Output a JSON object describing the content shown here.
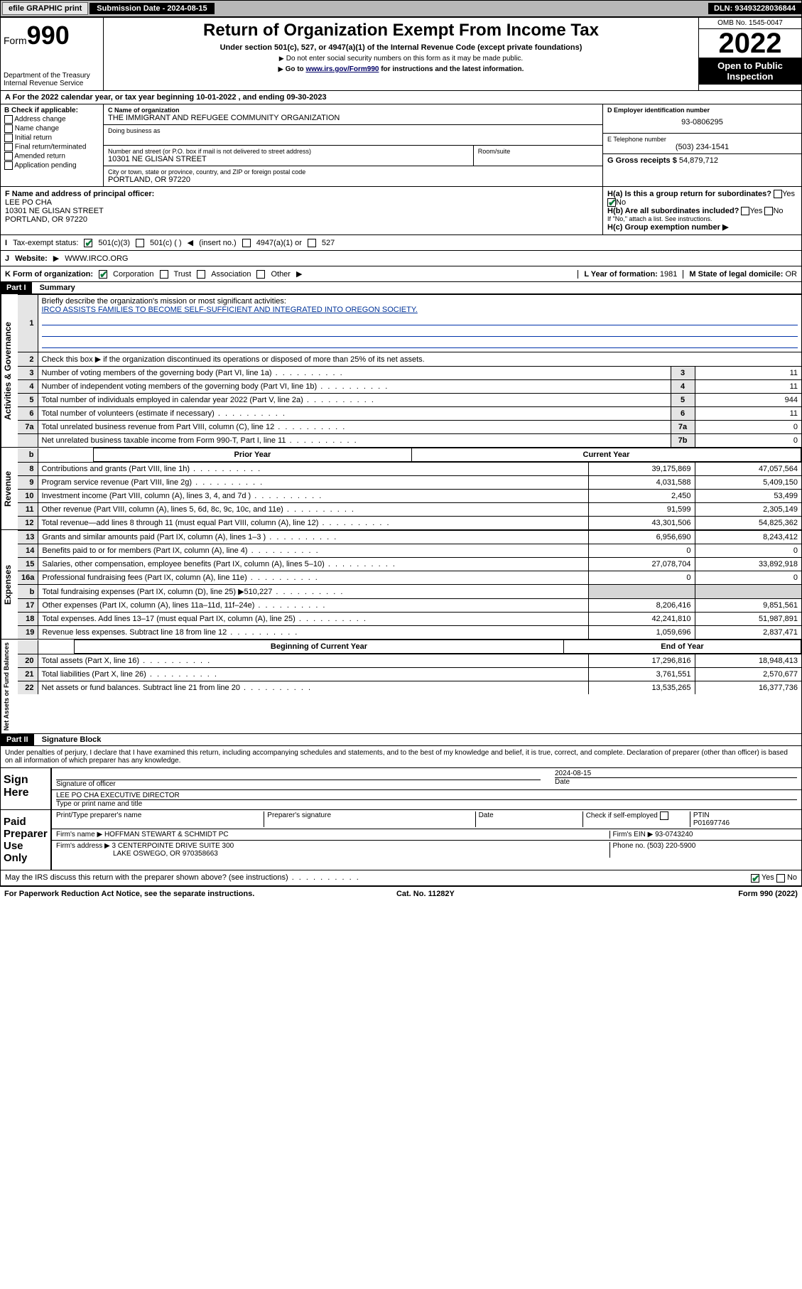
{
  "topbar": {
    "efile": "efile GRAPHIC print",
    "sub_label": "Submission Date - 2024-08-15",
    "dln": "DLN: 93493228036844"
  },
  "header": {
    "form_prefix": "Form",
    "form_num": "990",
    "dept": "Department of the Treasury",
    "irs": "Internal Revenue Service",
    "title": "Return of Organization Exempt From Income Tax",
    "sub": "Under section 501(c), 527, or 4947(a)(1) of the Internal Revenue Code (except private foundations)",
    "note1": "Do not enter social security numbers on this form as it may be made public.",
    "note2_pre": "Go to ",
    "note2_link": "www.irs.gov/Form990",
    "note2_post": " for instructions and the latest information.",
    "omb": "OMB No. 1545-0047",
    "year": "2022",
    "open": "Open to Public Inspection"
  },
  "period": "For the 2022 calendar year, or tax year beginning 10-01-2022  , and ending 09-30-2023",
  "sectionB": {
    "label": "B Check if applicable:",
    "items": [
      "Address change",
      "Name change",
      "Initial return",
      "Final return/terminated",
      "Amended return",
      "Application pending"
    ]
  },
  "sectionC": {
    "name_lbl": "C Name of organization",
    "name": "THE IMMIGRANT AND REFUGEE COMMUNITY ORGANIZATION",
    "dba_lbl": "Doing business as",
    "street_lbl": "Number and street (or P.O. box if mail is not delivered to street address)",
    "room_lbl": "Room/suite",
    "street": "10301 NE GLISAN STREET",
    "city_lbl": "City or town, state or province, country, and ZIP or foreign postal code",
    "city": "PORTLAND, OR  97220"
  },
  "sectionD": {
    "lbl": "D Employer identification number",
    "val": "93-0806295"
  },
  "sectionE": {
    "lbl": "E Telephone number",
    "val": "(503) 234-1541"
  },
  "sectionG": {
    "lbl": "G Gross receipts $",
    "val": "54,879,712"
  },
  "sectionF": {
    "lbl": "F Name and address of principal officer:",
    "name": "LEE PO CHA",
    "addr1": "10301 NE GLISAN STREET",
    "addr2": "PORTLAND, OR  97220"
  },
  "sectionH": {
    "ha": "H(a)  Is this a group return for subordinates?",
    "yes": "Yes",
    "no": "No",
    "hb": "H(b)  Are all subordinates included?",
    "hb_note": "If \"No,\" attach a list. See instructions.",
    "hc": "H(c)  Group exemption number"
  },
  "taxline": {
    "lbl": "Tax-exempt status:",
    "c3": "501(c)(3)",
    "c_blank": "501(c) (  )",
    "insert": "(insert no.)",
    "a1": "4947(a)(1) or",
    "s527": "527"
  },
  "website": {
    "lbl": "Website:",
    "val": "WWW.IRCO.ORG"
  },
  "kline": {
    "lbl": "K Form of organization:",
    "opts": [
      "Corporation",
      "Trust",
      "Association",
      "Other"
    ],
    "l_lbl": "L Year of formation:",
    "l_val": "1981",
    "m_lbl": "M State of legal domicile:",
    "m_val": "OR"
  },
  "part1": {
    "hdr": "Part I",
    "title": "Summary",
    "q1_lbl": "Briefly describe the organization's mission or most significant activities:",
    "q1_val": "IRCO ASSISTS FAMILIES TO BECOME SELF-SUFFICIENT AND INTEGRATED INTO OREGON SOCIETY.",
    "q2": "Check this box ▶     if the organization discontinued its operations or disposed of more than 25% of its net assets.",
    "sideA": "Activities & Governance",
    "sideR": "Revenue",
    "sideE": "Expenses",
    "sideN": "Net Assets or Fund Balances",
    "rows_gov": [
      {
        "n": "3",
        "t": "Number of voting members of the governing body (Part VI, line 1a)",
        "c": "3",
        "v": "11"
      },
      {
        "n": "4",
        "t": "Number of independent voting members of the governing body (Part VI, line 1b)",
        "c": "4",
        "v": "11"
      },
      {
        "n": "5",
        "t": "Total number of individuals employed in calendar year 2022 (Part V, line 2a)",
        "c": "5",
        "v": "944"
      },
      {
        "n": "6",
        "t": "Total number of volunteers (estimate if necessary)",
        "c": "6",
        "v": "11"
      },
      {
        "n": "7a",
        "t": "Total unrelated business revenue from Part VIII, column (C), line 12",
        "c": "7a",
        "v": "0"
      },
      {
        "n": "",
        "t": "Net unrelated business taxable income from Form 990-T, Part I, line 11",
        "c": "7b",
        "v": "0"
      }
    ],
    "hdr_prior": "Prior Year",
    "hdr_curr": "Current Year",
    "rows_rev": [
      {
        "n": "8",
        "t": "Contributions and grants (Part VIII, line 1h)",
        "p": "39,175,869",
        "c": "47,057,564"
      },
      {
        "n": "9",
        "t": "Program service revenue (Part VIII, line 2g)",
        "p": "4,031,588",
        "c": "5,409,150"
      },
      {
        "n": "10",
        "t": "Investment income (Part VIII, column (A), lines 3, 4, and 7d )",
        "p": "2,450",
        "c": "53,499"
      },
      {
        "n": "11",
        "t": "Other revenue (Part VIII, column (A), lines 5, 6d, 8c, 9c, 10c, and 11e)",
        "p": "91,599",
        "c": "2,305,149"
      },
      {
        "n": "12",
        "t": "Total revenue—add lines 8 through 11 (must equal Part VIII, column (A), line 12)",
        "p": "43,301,506",
        "c": "54,825,362"
      }
    ],
    "rows_exp": [
      {
        "n": "13",
        "t": "Grants and similar amounts paid (Part IX, column (A), lines 1–3 )",
        "p": "6,956,690",
        "c": "8,243,412"
      },
      {
        "n": "14",
        "t": "Benefits paid to or for members (Part IX, column (A), line 4)",
        "p": "0",
        "c": "0"
      },
      {
        "n": "15",
        "t": "Salaries, other compensation, employee benefits (Part IX, column (A), lines 5–10)",
        "p": "27,078,704",
        "c": "33,892,918"
      },
      {
        "n": "16a",
        "t": "Professional fundraising fees (Part IX, column (A), line 11e)",
        "p": "0",
        "c": "0"
      },
      {
        "n": "b",
        "t": "Total fundraising expenses (Part IX, column (D), line 25) ▶510,227",
        "p": "",
        "c": "",
        "shade": true
      },
      {
        "n": "17",
        "t": "Other expenses (Part IX, column (A), lines 11a–11d, 11f–24e)",
        "p": "8,206,416",
        "c": "9,851,561"
      },
      {
        "n": "18",
        "t": "Total expenses. Add lines 13–17 (must equal Part IX, column (A), line 25)",
        "p": "42,241,810",
        "c": "51,987,891"
      },
      {
        "n": "19",
        "t": "Revenue less expenses. Subtract line 18 from line 12",
        "p": "1,059,696",
        "c": "2,837,471"
      }
    ],
    "hdr_beg": "Beginning of Current Year",
    "hdr_end": "End of Year",
    "rows_net": [
      {
        "n": "20",
        "t": "Total assets (Part X, line 16)",
        "p": "17,296,816",
        "c": "18,948,413"
      },
      {
        "n": "21",
        "t": "Total liabilities (Part X, line 26)",
        "p": "3,761,551",
        "c": "2,570,677"
      },
      {
        "n": "22",
        "t": "Net assets or fund balances. Subtract line 21 from line 20",
        "p": "13,535,265",
        "c": "16,377,736"
      }
    ]
  },
  "part2": {
    "hdr": "Part II",
    "title": "Signature Block",
    "decl": "Under penalties of perjury, I declare that I have examined this return, including accompanying schedules and statements, and to the best of my knowledge and belief, it is true, correct, and complete. Declaration of preparer (other than officer) is based on all information of which preparer has any knowledge.",
    "sign_here": "Sign Here",
    "sig_officer": "Signature of officer",
    "sig_date": "2024-08-15",
    "date_lbl": "Date",
    "officer": "LEE PO CHA  EXECUTIVE DIRECTOR",
    "type_lbl": "Type or print name and title",
    "paid": "Paid Preparer Use Only",
    "prep_name_lbl": "Print/Type preparer's name",
    "prep_sig_lbl": "Preparer's signature",
    "check_if": "Check        if self-employed",
    "ptin_lbl": "PTIN",
    "ptin": "P01697746",
    "firm_name_lbl": "Firm's name   ",
    "firm_name": "HOFFMAN STEWART & SCHMIDT PC",
    "firm_ein_lbl": "Firm's EIN ",
    "firm_ein": "93-0743240",
    "firm_addr_lbl": "Firm's address ",
    "firm_addr1": "3 CENTERPOINTE DRIVE SUITE 300",
    "firm_addr2": "LAKE OSWEGO, OR  970358663",
    "phone_lbl": "Phone no.",
    "phone": "(503) 220-5900",
    "may_irs": "May the IRS discuss this return with the preparer shown above? (see instructions)",
    "yes": "Yes",
    "no": "No"
  },
  "footer": {
    "left": "For Paperwork Reduction Act Notice, see the separate instructions.",
    "mid": "Cat. No. 11282Y",
    "right": "Form 990 (2022)"
  },
  "colors": {
    "link": "#003399",
    "check": "#0a7a3a"
  }
}
